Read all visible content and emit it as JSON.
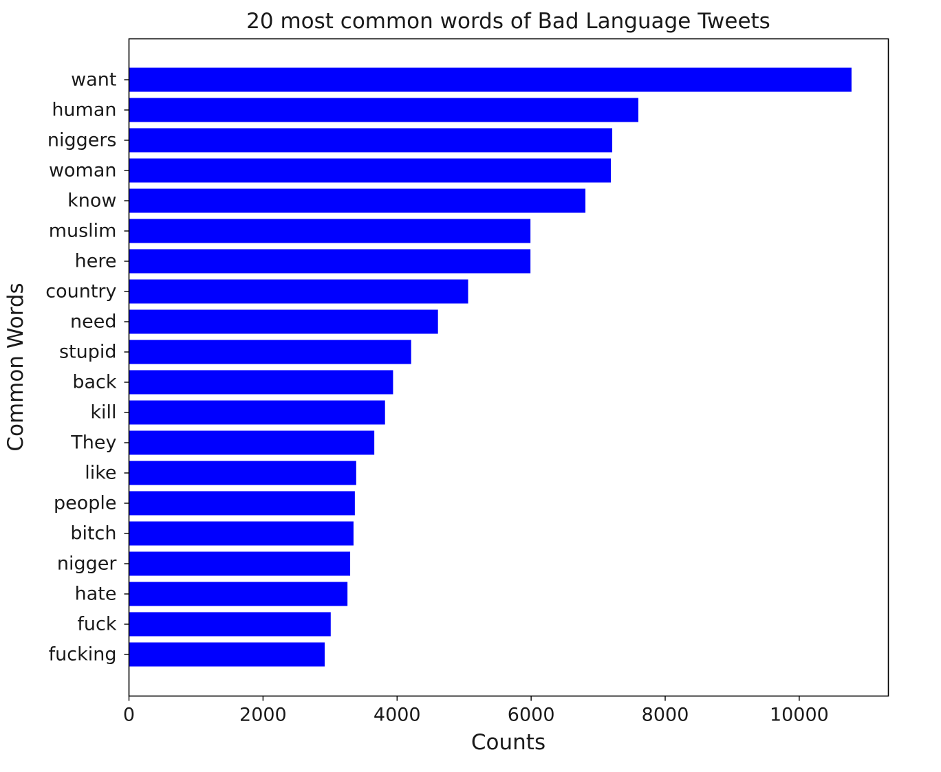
{
  "chart_data": {
    "type": "bar",
    "orientation": "horizontal",
    "title": "20 most common words of Bad Language Tweets",
    "xlabel": "Counts",
    "ylabel": "Common Words",
    "categories": [
      "want",
      "human",
      "niggers",
      "woman",
      "know",
      "muslim",
      "here",
      "country",
      "need",
      "stupid",
      "back",
      "kill",
      "They",
      "like",
      "people",
      "bitch",
      "nigger",
      "hate",
      "fuck",
      "fucking"
    ],
    "values": [
      10780,
      7600,
      7210,
      7190,
      6810,
      5990,
      5990,
      5060,
      4610,
      4210,
      3940,
      3820,
      3660,
      3390,
      3370,
      3350,
      3300,
      3260,
      3010,
      2920
    ],
    "xlim": [
      0,
      11330
    ],
    "xticks": [
      0,
      2000,
      4000,
      6000,
      8000,
      10000
    ],
    "grid": false,
    "bar_color": "#0000ff"
  }
}
